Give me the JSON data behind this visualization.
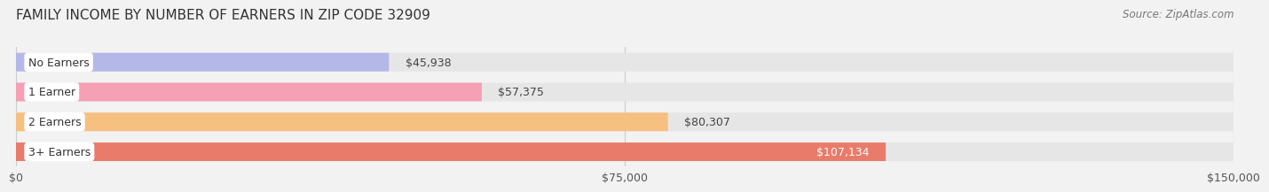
{
  "title": "FAMILY INCOME BY NUMBER OF EARNERS IN ZIP CODE 32909",
  "source": "Source: ZipAtlas.com",
  "categories": [
    "No Earners",
    "1 Earner",
    "2 Earners",
    "3+ Earners"
  ],
  "values": [
    45938,
    57375,
    80307,
    107134
  ],
  "bar_colors": [
    "#b3b8e8",
    "#f5a0b5",
    "#f5c080",
    "#e87b6a"
  ],
  "value_labels": [
    "$45,938",
    "$57,375",
    "$80,307",
    "$107,134"
  ],
  "value_label_inside": [
    false,
    false,
    false,
    true
  ],
  "xlim": [
    0,
    150000
  ],
  "xtick_values": [
    0,
    75000,
    150000
  ],
  "xtick_labels": [
    "$0",
    "$75,000",
    "$150,000"
  ],
  "background_color": "#f2f2f2",
  "bar_background_color": "#e6e6e6",
  "title_fontsize": 11,
  "source_fontsize": 8.5,
  "label_fontsize": 9,
  "value_fontsize": 9,
  "tick_fontsize": 9
}
